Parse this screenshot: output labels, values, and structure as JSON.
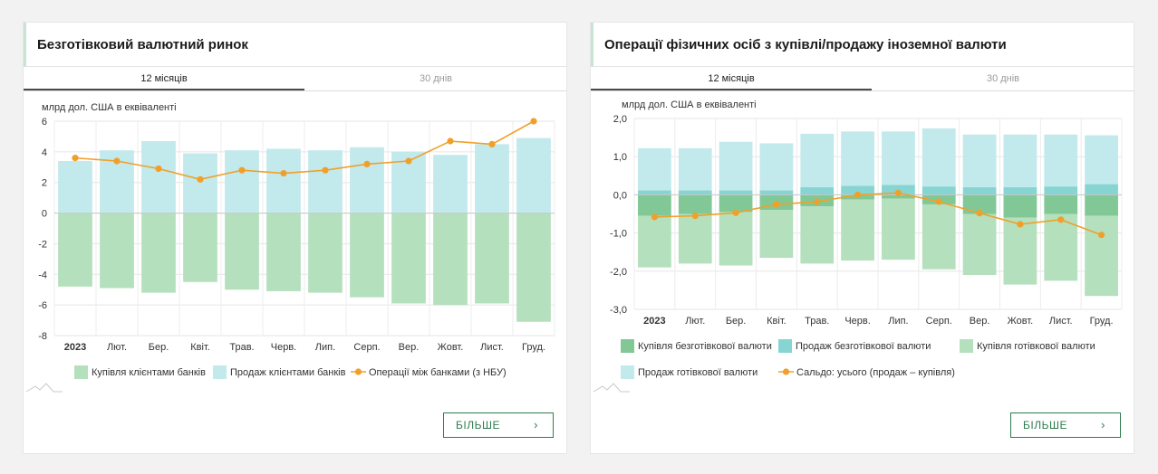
{
  "panel1": {
    "title": "Безготівковий валютний ринок",
    "tabs": [
      "12 місяців",
      "30 днів"
    ],
    "more": "БІЛЬШЕ"
  },
  "panel2": {
    "title": "Операції фізичних осіб з купівлі/продажу іноземної валюти",
    "tabs": [
      "12 місяців",
      "30 днів"
    ],
    "more": "БІЛЬШЕ"
  },
  "chart_data": [
    {
      "type": "bar",
      "ylabel": "млрд дол. США в еквіваленті",
      "categories": [
        "2023",
        "Лют.",
        "Бер.",
        "Квіт.",
        "Трав.",
        "Черв.",
        "Лип.",
        "Серп.",
        "Вер.",
        "Жовт.",
        "Лист.",
        "Груд."
      ],
      "ylim": [
        -8,
        6
      ],
      "yticks": [
        "6",
        "4",
        "2",
        "0",
        "-2",
        "-4",
        "-6",
        "-8"
      ],
      "series": [
        {
          "name": "Купівля клієнтами банків",
          "kind": "bar",
          "color": "#b5e0bd",
          "values": [
            -4.8,
            -4.9,
            -5.2,
            -4.5,
            -5.0,
            -5.1,
            -5.2,
            -5.5,
            -5.9,
            -6.0,
            -5.9,
            -7.1
          ]
        },
        {
          "name": "Продаж клієнтами банків",
          "kind": "bar",
          "color": "#c2e9ec",
          "values": [
            3.4,
            4.1,
            4.7,
            3.9,
            4.1,
            4.2,
            4.1,
            4.3,
            4.0,
            3.8,
            4.5,
            4.9
          ]
        },
        {
          "name": "Операції між банками (з НБУ)",
          "kind": "line",
          "color": "#f0a02a",
          "values": [
            3.6,
            3.4,
            2.9,
            2.2,
            2.8,
            2.6,
            2.8,
            3.2,
            3.4,
            4.7,
            4.5,
            6.0
          ]
        }
      ],
      "grid": true,
      "legend": "bottom"
    },
    {
      "type": "bar",
      "ylabel": "млрд дол. США в еквіваленті",
      "categories": [
        "2023",
        "Лют.",
        "Бер.",
        "Квіт.",
        "Трав.",
        "Черв.",
        "Лип.",
        "Серп.",
        "Вер.",
        "Жовт.",
        "Лист.",
        "Груд."
      ],
      "ylim": [
        -3,
        2
      ],
      "yticks": [
        "2,0",
        "1,0",
        "0,0",
        "-1,0",
        "-2,0",
        "-3,0"
      ],
      "series": [
        {
          "name": "Купівля безготівкової валюти",
          "kind": "bar",
          "color": "#82c896",
          "values": [
            -0.55,
            -0.5,
            -0.45,
            -0.4,
            -0.3,
            -0.12,
            -0.1,
            -0.25,
            -0.5,
            -0.6,
            -0.5,
            -0.55
          ]
        },
        {
          "name": "Продаж безготівкової валюти",
          "kind": "bar",
          "color": "#86d5d3",
          "values": [
            0.12,
            0.12,
            0.12,
            0.12,
            0.2,
            0.24,
            0.26,
            0.22,
            0.2,
            0.2,
            0.22,
            0.28
          ]
        },
        {
          "name": "Купівля готівкової валюти",
          "kind": "bar",
          "color": "#b5e0bd",
          "values": [
            -1.35,
            -1.3,
            -1.4,
            -1.25,
            -1.5,
            -1.6,
            -1.6,
            -1.7,
            -1.6,
            -1.75,
            -1.75,
            -2.1
          ]
        },
        {
          "name": "Продаж готівкової валюти",
          "kind": "bar",
          "color": "#c2e9ec",
          "values": [
            1.1,
            1.1,
            1.27,
            1.23,
            1.4,
            1.42,
            1.4,
            1.52,
            1.38,
            1.38,
            1.36,
            1.28
          ]
        },
        {
          "name": "Сальдо: усього (продаж – купівля)",
          "kind": "line",
          "color": "#f0a02a",
          "values": [
            -0.58,
            -0.55,
            -0.47,
            -0.25,
            -0.18,
            0.0,
            0.05,
            -0.18,
            -0.48,
            -0.77,
            -0.65,
            -1.05
          ]
        }
      ],
      "grid": true,
      "legend": "bottom"
    }
  ]
}
